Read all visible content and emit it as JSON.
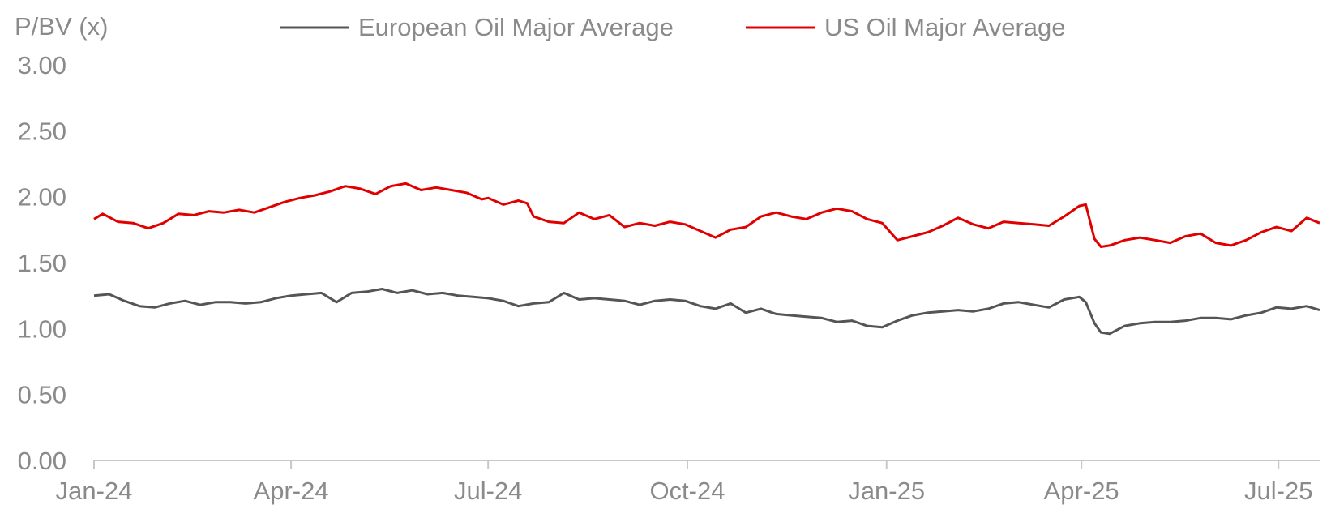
{
  "chart_data": {
    "type": "line",
    "ylabel": "P/BV (x)",
    "ylim": [
      0,
      3
    ],
    "y_ticks": [
      "0.00",
      "0.50",
      "1.00",
      "1.50",
      "2.00",
      "2.50",
      "3.00"
    ],
    "x_ticks": [
      {
        "date": "2024-01-01",
        "label": "Jan-24"
      },
      {
        "date": "2024-04-01",
        "label": "Apr-24"
      },
      {
        "date": "2024-07-01",
        "label": "Jul-24"
      },
      {
        "date": "2024-10-01",
        "label": "Oct-24"
      },
      {
        "date": "2025-01-01",
        "label": "Jan-25"
      },
      {
        "date": "2025-04-01",
        "label": "Apr-25"
      },
      {
        "date": "2025-07-01",
        "label": "Jul-25"
      }
    ],
    "xlim": [
      "2024-01-01",
      "2025-07-20"
    ],
    "legend_position": "top",
    "grid": false,
    "series": [
      {
        "name": "European Oil Major Average",
        "color": "#555555",
        "points": [
          [
            "2024-01-01",
            1.25
          ],
          [
            "2024-01-08",
            1.26
          ],
          [
            "2024-01-15",
            1.21
          ],
          [
            "2024-01-22",
            1.17
          ],
          [
            "2024-01-29",
            1.16
          ],
          [
            "2024-02-05",
            1.19
          ],
          [
            "2024-02-12",
            1.21
          ],
          [
            "2024-02-19",
            1.18
          ],
          [
            "2024-02-26",
            1.2
          ],
          [
            "2024-03-04",
            1.2
          ],
          [
            "2024-03-11",
            1.19
          ],
          [
            "2024-03-18",
            1.2
          ],
          [
            "2024-03-25",
            1.23
          ],
          [
            "2024-04-01",
            1.25
          ],
          [
            "2024-04-08",
            1.26
          ],
          [
            "2024-04-15",
            1.27
          ],
          [
            "2024-04-22",
            1.2
          ],
          [
            "2024-04-29",
            1.27
          ],
          [
            "2024-05-06",
            1.28
          ],
          [
            "2024-05-13",
            1.3
          ],
          [
            "2024-05-20",
            1.27
          ],
          [
            "2024-05-27",
            1.29
          ],
          [
            "2024-06-03",
            1.26
          ],
          [
            "2024-06-10",
            1.27
          ],
          [
            "2024-06-17",
            1.25
          ],
          [
            "2024-06-24",
            1.24
          ],
          [
            "2024-07-01",
            1.23
          ],
          [
            "2024-07-08",
            1.21
          ],
          [
            "2024-07-15",
            1.17
          ],
          [
            "2024-07-22",
            1.19
          ],
          [
            "2024-07-29",
            1.2
          ],
          [
            "2024-08-05",
            1.27
          ],
          [
            "2024-08-12",
            1.22
          ],
          [
            "2024-08-19",
            1.23
          ],
          [
            "2024-08-26",
            1.22
          ],
          [
            "2024-09-02",
            1.21
          ],
          [
            "2024-09-09",
            1.18
          ],
          [
            "2024-09-16",
            1.21
          ],
          [
            "2024-09-23",
            1.22
          ],
          [
            "2024-09-30",
            1.21
          ],
          [
            "2024-10-07",
            1.17
          ],
          [
            "2024-10-14",
            1.15
          ],
          [
            "2024-10-21",
            1.19
          ],
          [
            "2024-10-28",
            1.12
          ],
          [
            "2024-11-04",
            1.15
          ],
          [
            "2024-11-11",
            1.11
          ],
          [
            "2024-11-18",
            1.1
          ],
          [
            "2024-11-25",
            1.09
          ],
          [
            "2024-12-02",
            1.08
          ],
          [
            "2024-12-09",
            1.05
          ],
          [
            "2024-12-16",
            1.06
          ],
          [
            "2024-12-23",
            1.02
          ],
          [
            "2024-12-30",
            1.01
          ],
          [
            "2025-01-06",
            1.06
          ],
          [
            "2025-01-13",
            1.1
          ],
          [
            "2025-01-20",
            1.12
          ],
          [
            "2025-01-27",
            1.13
          ],
          [
            "2025-02-03",
            1.14
          ],
          [
            "2025-02-10",
            1.13
          ],
          [
            "2025-02-17",
            1.15
          ],
          [
            "2025-02-24",
            1.19
          ],
          [
            "2025-03-03",
            1.2
          ],
          [
            "2025-03-10",
            1.18
          ],
          [
            "2025-03-17",
            1.16
          ],
          [
            "2025-03-24",
            1.22
          ],
          [
            "2025-03-31",
            1.24
          ],
          [
            "2025-04-03",
            1.2
          ],
          [
            "2025-04-07",
            1.04
          ],
          [
            "2025-04-10",
            0.97
          ],
          [
            "2025-04-14",
            0.96
          ],
          [
            "2025-04-21",
            1.02
          ],
          [
            "2025-04-28",
            1.04
          ],
          [
            "2025-05-05",
            1.05
          ],
          [
            "2025-05-12",
            1.05
          ],
          [
            "2025-05-19",
            1.06
          ],
          [
            "2025-05-26",
            1.08
          ],
          [
            "2025-06-02",
            1.08
          ],
          [
            "2025-06-09",
            1.07
          ],
          [
            "2025-06-16",
            1.1
          ],
          [
            "2025-06-23",
            1.12
          ],
          [
            "2025-06-30",
            1.16
          ],
          [
            "2025-07-07",
            1.15
          ],
          [
            "2025-07-14",
            1.17
          ],
          [
            "2025-07-20",
            1.14
          ]
        ]
      },
      {
        "name": "US Oil Major Average",
        "color": "#e00000",
        "points": [
          [
            "2024-01-01",
            1.83
          ],
          [
            "2024-01-05",
            1.87
          ],
          [
            "2024-01-12",
            1.81
          ],
          [
            "2024-01-19",
            1.8
          ],
          [
            "2024-01-26",
            1.76
          ],
          [
            "2024-02-02",
            1.8
          ],
          [
            "2024-02-09",
            1.87
          ],
          [
            "2024-02-16",
            1.86
          ],
          [
            "2024-02-23",
            1.89
          ],
          [
            "2024-03-01",
            1.88
          ],
          [
            "2024-03-08",
            1.9
          ],
          [
            "2024-03-15",
            1.88
          ],
          [
            "2024-03-22",
            1.92
          ],
          [
            "2024-03-29",
            1.96
          ],
          [
            "2024-04-05",
            1.99
          ],
          [
            "2024-04-12",
            2.01
          ],
          [
            "2024-04-19",
            2.04
          ],
          [
            "2024-04-26",
            2.08
          ],
          [
            "2024-05-03",
            2.06
          ],
          [
            "2024-05-10",
            2.02
          ],
          [
            "2024-05-17",
            2.08
          ],
          [
            "2024-05-24",
            2.1
          ],
          [
            "2024-05-31",
            2.05
          ],
          [
            "2024-06-07",
            2.07
          ],
          [
            "2024-06-14",
            2.05
          ],
          [
            "2024-06-21",
            2.03
          ],
          [
            "2024-06-28",
            1.98
          ],
          [
            "2024-07-01",
            1.99
          ],
          [
            "2024-07-08",
            1.94
          ],
          [
            "2024-07-15",
            1.97
          ],
          [
            "2024-07-19",
            1.95
          ],
          [
            "2024-07-22",
            1.85
          ],
          [
            "2024-07-29",
            1.81
          ],
          [
            "2024-08-05",
            1.8
          ],
          [
            "2024-08-12",
            1.88
          ],
          [
            "2024-08-19",
            1.83
          ],
          [
            "2024-08-26",
            1.86
          ],
          [
            "2024-09-02",
            1.77
          ],
          [
            "2024-09-09",
            1.8
          ],
          [
            "2024-09-16",
            1.78
          ],
          [
            "2024-09-23",
            1.81
          ],
          [
            "2024-09-30",
            1.79
          ],
          [
            "2024-10-07",
            1.74
          ],
          [
            "2024-10-14",
            1.69
          ],
          [
            "2024-10-21",
            1.75
          ],
          [
            "2024-10-28",
            1.77
          ],
          [
            "2024-11-04",
            1.85
          ],
          [
            "2024-11-11",
            1.88
          ],
          [
            "2024-11-18",
            1.85
          ],
          [
            "2024-11-25",
            1.83
          ],
          [
            "2024-12-02",
            1.88
          ],
          [
            "2024-12-09",
            1.91
          ],
          [
            "2024-12-16",
            1.89
          ],
          [
            "2024-12-23",
            1.83
          ],
          [
            "2024-12-30",
            1.8
          ],
          [
            "2025-01-06",
            1.67
          ],
          [
            "2025-01-13",
            1.7
          ],
          [
            "2025-01-20",
            1.73
          ],
          [
            "2025-01-27",
            1.78
          ],
          [
            "2025-02-03",
            1.84
          ],
          [
            "2025-02-10",
            1.79
          ],
          [
            "2025-02-17",
            1.76
          ],
          [
            "2025-02-24",
            1.81
          ],
          [
            "2025-03-03",
            1.8
          ],
          [
            "2025-03-10",
            1.79
          ],
          [
            "2025-03-17",
            1.78
          ],
          [
            "2025-03-24",
            1.85
          ],
          [
            "2025-03-31",
            1.93
          ],
          [
            "2025-04-03",
            1.94
          ],
          [
            "2025-04-07",
            1.68
          ],
          [
            "2025-04-10",
            1.62
          ],
          [
            "2025-04-14",
            1.63
          ],
          [
            "2025-04-21",
            1.67
          ],
          [
            "2025-04-28",
            1.69
          ],
          [
            "2025-05-05",
            1.67
          ],
          [
            "2025-05-12",
            1.65
          ],
          [
            "2025-05-19",
            1.7
          ],
          [
            "2025-05-26",
            1.72
          ],
          [
            "2025-06-02",
            1.65
          ],
          [
            "2025-06-09",
            1.63
          ],
          [
            "2025-06-16",
            1.67
          ],
          [
            "2025-06-23",
            1.73
          ],
          [
            "2025-06-30",
            1.77
          ],
          [
            "2025-07-07",
            1.74
          ],
          [
            "2025-07-14",
            1.84
          ],
          [
            "2025-07-20",
            1.8
          ]
        ]
      }
    ]
  }
}
